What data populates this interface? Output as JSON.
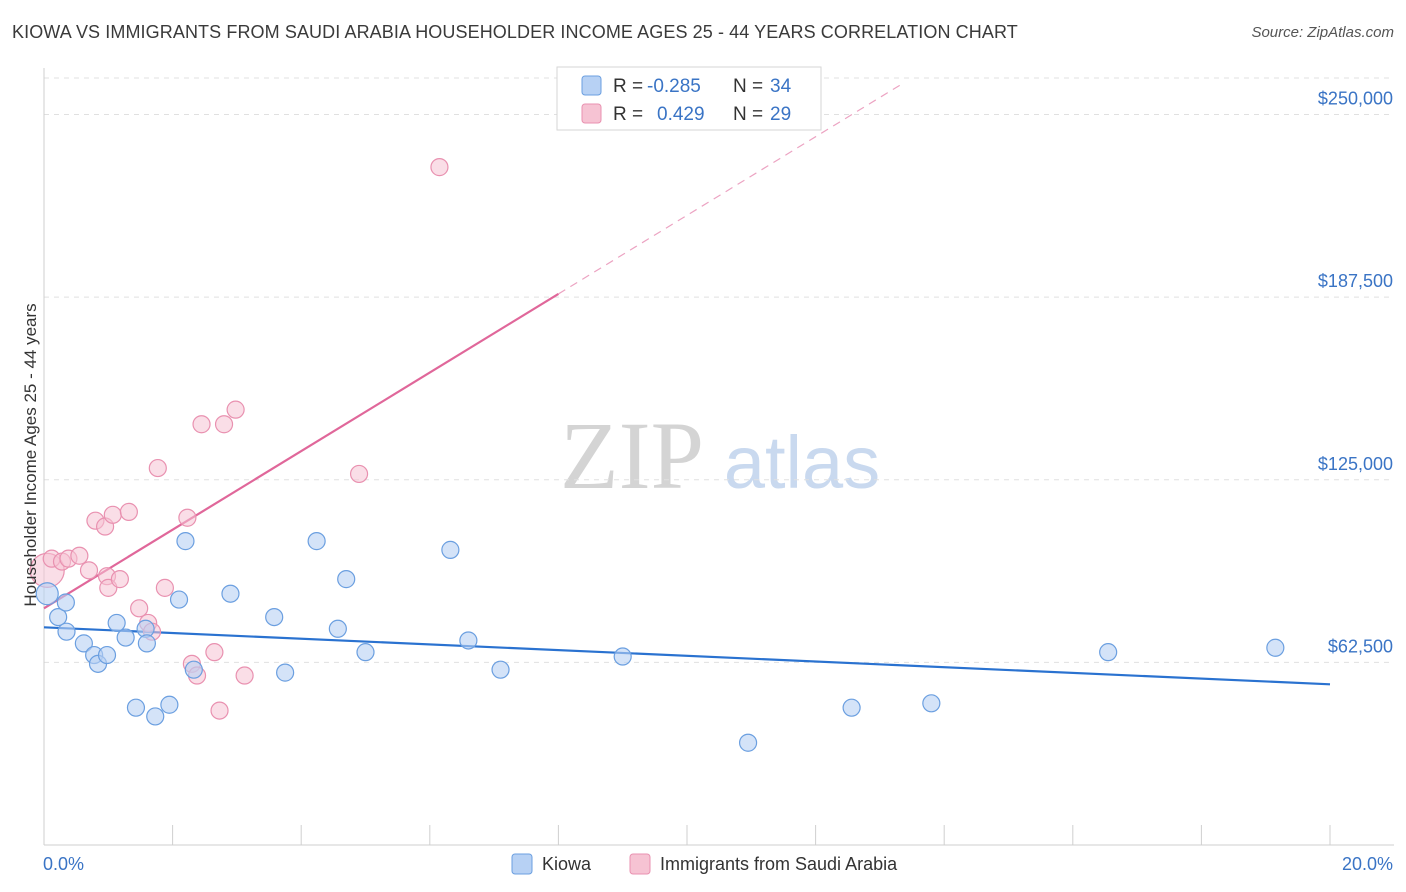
{
  "header": {
    "title": "KIOWA VS IMMIGRANTS FROM SAUDI ARABIA HOUSEHOLDER INCOME AGES 25 - 44 YEARS CORRELATION CHART",
    "source": "Source: ZipAtlas.com"
  },
  "watermark": {
    "zip": "ZIP",
    "atlas": "atlas"
  },
  "colors": {
    "kiowa_fill": "#b7d1f4",
    "kiowa_stroke": "#6b9fe0",
    "kiowa_line": "#2a72d0",
    "saudi_fill": "#f6c3d3",
    "saudi_stroke": "#e991b0",
    "saudi_line": "#e0679a",
    "tick_label": "#3a74c5"
  },
  "legend": {
    "rows": [
      {
        "r_label": "R =",
        "r_value": "-0.285",
        "n_label": "N =",
        "n_value": "34"
      },
      {
        "r_label": "R =",
        "r_value": "0.429",
        "n_label": "N =",
        "n_value": "29"
      }
    ]
  },
  "bottom_legend": {
    "kiowa": "Kiowa",
    "saudi": "Immigrants from Saudi Arabia"
  },
  "chart_data": {
    "type": "scatter",
    "title": "KIOWA VS IMMIGRANTS FROM SAUDI ARABIA HOUSEHOLDER INCOME AGES 25 - 44 YEARS CORRELATION CHART",
    "xlabel": "",
    "ylabel": "Householder Income Ages 25 - 44 years",
    "xlim": [
      0,
      20
    ],
    "ylim": [
      0,
      262500
    ],
    "x_tick_labels": [
      "0.0%",
      "20.0%"
    ],
    "y_ticks": [
      62500,
      125000,
      187500,
      250000
    ],
    "y_tick_labels": [
      "$62,500",
      "$125,000",
      "$187,500",
      "$250,000"
    ],
    "series": [
      {
        "name": "Kiowa",
        "r": -0.285,
        "n": 34,
        "points": [
          [
            0.05,
            86000
          ],
          [
            0.22,
            78000
          ],
          [
            0.34,
            83000
          ],
          [
            0.35,
            73000
          ],
          [
            0.62,
            69000
          ],
          [
            0.78,
            65000
          ],
          [
            0.84,
            62000
          ],
          [
            0.98,
            65000
          ],
          [
            1.13,
            76000
          ],
          [
            1.27,
            71000
          ],
          [
            1.43,
            47000
          ],
          [
            1.58,
            74000
          ],
          [
            1.6,
            69000
          ],
          [
            1.73,
            44000
          ],
          [
            1.95,
            48000
          ],
          [
            2.1,
            84000
          ],
          [
            2.2,
            104000
          ],
          [
            2.33,
            60000
          ],
          [
            2.9,
            86000
          ],
          [
            3.58,
            78000
          ],
          [
            3.75,
            59000
          ],
          [
            4.24,
            104000
          ],
          [
            4.57,
            74000
          ],
          [
            4.7,
            91000
          ],
          [
            5.0,
            66000
          ],
          [
            6.32,
            101000
          ],
          [
            6.6,
            70000
          ],
          [
            7.1,
            60000
          ],
          [
            9.0,
            64500
          ],
          [
            10.95,
            35000
          ],
          [
            12.56,
            47000
          ],
          [
            13.8,
            48500
          ],
          [
            16.55,
            66000
          ],
          [
            19.15,
            67500
          ]
        ],
        "trend": {
          "x": [
            0,
            20
          ],
          "y": [
            74500,
            55000
          ]
        }
      },
      {
        "name": "Immigrants from Saudi Arabia",
        "r": 0.429,
        "n": 29,
        "points": [
          [
            0.05,
            94000
          ],
          [
            0.12,
            98000
          ],
          [
            0.28,
            97000
          ],
          [
            0.38,
            98000
          ],
          [
            0.55,
            99000
          ],
          [
            0.7,
            94000
          ],
          [
            0.8,
            111000
          ],
          [
            0.95,
            109000
          ],
          [
            0.98,
            92000
          ],
          [
            1.0,
            88000
          ],
          [
            1.07,
            113000
          ],
          [
            1.18,
            91000
          ],
          [
            1.32,
            114000
          ],
          [
            1.48,
            81000
          ],
          [
            1.62,
            76000
          ],
          [
            1.68,
            73000
          ],
          [
            1.77,
            129000
          ],
          [
            1.88,
            88000
          ],
          [
            2.23,
            112000
          ],
          [
            2.3,
            62000
          ],
          [
            2.38,
            58000
          ],
          [
            2.45,
            144000
          ],
          [
            2.65,
            66000
          ],
          [
            2.73,
            46000
          ],
          [
            2.8,
            144000
          ],
          [
            2.98,
            149000
          ],
          [
            3.12,
            58000
          ],
          [
            4.9,
            127000
          ],
          [
            6.15,
            232000
          ]
        ],
        "trend": {
          "x": [
            0,
            20
          ],
          "y": [
            81000,
            350000
          ],
          "solid_until_x": 8.0
        }
      }
    ]
  }
}
